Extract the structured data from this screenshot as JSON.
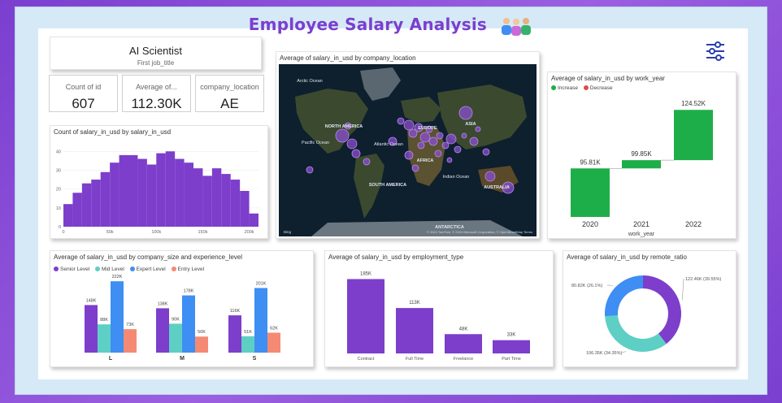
{
  "header": {
    "title": "Employee Salary Analysis"
  },
  "job_card": {
    "value": "AI Scientist",
    "label": "First job_title"
  },
  "kpis": [
    {
      "label": "Count of id",
      "value": "607"
    },
    {
      "label": "Average of...",
      "value": "112.30K"
    },
    {
      "label": "company_location",
      "value": "AE"
    }
  ],
  "map": {
    "title": "Average of salary_in_usd by company_location",
    "labels": [
      "Arctic Ocean",
      "NORTH AMERICA",
      "Pacific Ocean",
      "Atlantic Ocean",
      "EUROPE",
      "ASIA",
      "AFRICA",
      "SOUTH AMERICA",
      "Indian Ocean",
      "AUSTRALIA",
      "ANTARCTICA"
    ],
    "attribution": "© 2024 TomTom, © 2024 Microsoft Corporation, © OpenStreetMap  Terms",
    "brand": "Bing"
  },
  "colors": {
    "purple": "#7d3ecb",
    "mid": "#5ecfc5",
    "expert": "#3e8ef3",
    "entry": "#f58a74",
    "increase": "#1eae49",
    "decrease": "#e04a4a"
  },
  "chart_data": [
    {
      "type": "bar",
      "title": "Count of salary_in_usd by salary_in_usd",
      "x": [
        0,
        10,
        20,
        30,
        40,
        50,
        60,
        70,
        80,
        90,
        100,
        110,
        120,
        130,
        140,
        150,
        160,
        170,
        180,
        190,
        200
      ],
      "values": [
        12,
        18,
        23,
        25,
        29,
        34,
        38,
        38,
        36,
        33,
        39,
        40,
        36,
        34,
        31,
        27,
        31,
        28,
        25,
        19,
        7
      ],
      "xticks": [
        "0",
        "50k",
        "100k",
        "150k",
        "200k"
      ],
      "yticks": [
        "0",
        "10",
        "20",
        "30",
        "40"
      ],
      "ylim": [
        0,
        44
      ]
    },
    {
      "type": "waterfall",
      "title": "Average of salary_in_usd by work_year",
      "legend": [
        "Increase",
        "Decrease"
      ],
      "categories": [
        "2020",
        "2021",
        "2022"
      ],
      "values": [
        95.81,
        99.85,
        124.52
      ],
      "value_labels": [
        "95.81K",
        "99.85K",
        "124.52K"
      ],
      "xlabel": "work_year",
      "ylim": [
        72,
        127
      ]
    },
    {
      "type": "bar",
      "title": "Average of salary_in_usd by company_size and experience_level",
      "categories": [
        "L",
        "M",
        "S"
      ],
      "series": [
        {
          "name": "Senior Level",
          "values": [
            148,
            138,
            116
          ],
          "labels": [
            "148K",
            "138K",
            "116K"
          ]
        },
        {
          "name": "Mid Level",
          "values": [
            88,
            90,
            51
          ],
          "labels": [
            "88K",
            "90K",
            "51K"
          ]
        },
        {
          "name": "Expert Level",
          "values": [
            222,
            178,
            201
          ],
          "labels": [
            "222K",
            "178K",
            "201K"
          ]
        },
        {
          "name": "Entry Level",
          "values": [
            73,
            50,
            62
          ],
          "labels": [
            "73K",
            "50K",
            "62K"
          ]
        }
      ],
      "ylim": [
        0,
        230
      ]
    },
    {
      "type": "bar",
      "title": "Average of salary_in_usd by employment_type",
      "categories": [
        "Contract",
        "Full Time",
        "Freelance",
        "Part Time"
      ],
      "values": [
        185,
        113,
        48,
        33
      ],
      "value_labels": [
        "185K",
        "113K",
        "48K",
        "33K"
      ],
      "ylim": [
        0,
        190
      ]
    },
    {
      "type": "pie",
      "title": "Average of salary_in_usd by remote_ratio",
      "values": [
        122.46,
        106.35,
        80.82
      ],
      "labels": [
        "122.46K (39.55%)",
        "106.35K (34.35%)",
        "80.82K (26.1%)"
      ]
    }
  ]
}
